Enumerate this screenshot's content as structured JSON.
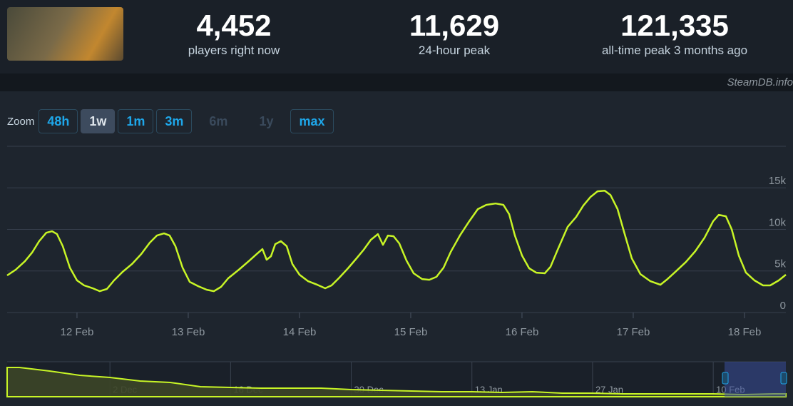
{
  "stats": [
    {
      "value": "4,452",
      "label": "players right now"
    },
    {
      "value": "11,629",
      "label": "24-hour peak"
    },
    {
      "value": "121,335",
      "label": "all-time peak 3 months ago"
    }
  ],
  "watermark": "SteamDB.info",
  "zoom": {
    "label": "Zoom",
    "options": [
      "48h",
      "1w",
      "1m",
      "3m",
      "6m",
      "1y",
      "max"
    ],
    "active": "1w",
    "disabled": [
      "6m",
      "1y"
    ]
  },
  "chart_data": [
    {
      "type": "line",
      "color": "#c8f526",
      "grid": true,
      "x": [
        11.372,
        11.449,
        11.532,
        11.596,
        11.66,
        11.724,
        11.776,
        11.821,
        11.872,
        11.936,
        12.0,
        12.064,
        12.141,
        12.205,
        12.269,
        12.333,
        12.41,
        12.494,
        12.577,
        12.654,
        12.718,
        12.782,
        12.833,
        12.885,
        12.949,
        13.013,
        13.09,
        13.167,
        13.231,
        13.295,
        13.359,
        13.455,
        13.551,
        13.615,
        13.667,
        13.705,
        13.744,
        13.782,
        13.833,
        13.885,
        13.936,
        14.0,
        14.077,
        14.16,
        14.231,
        14.288,
        14.353,
        14.436,
        14.513,
        14.577,
        14.641,
        14.705,
        14.75,
        14.795,
        14.846,
        14.897,
        14.962,
        15.026,
        15.103,
        15.167,
        15.231,
        15.295,
        15.359,
        15.442,
        15.526,
        15.603,
        15.679,
        15.763,
        15.833,
        15.885,
        15.936,
        16.0,
        16.064,
        16.128,
        16.205,
        16.256,
        16.321,
        16.41,
        16.487,
        16.551,
        16.615,
        16.679,
        16.744,
        16.795,
        16.859,
        16.923,
        16.987,
        17.064,
        17.154,
        17.244,
        17.308,
        17.385,
        17.474,
        17.558,
        17.641,
        17.718,
        17.769,
        17.833,
        17.885,
        17.949,
        18.013,
        18.09,
        18.167,
        18.231,
        18.308,
        18.372
      ],
      "values": [
        4460,
        5150,
        6170,
        7200,
        8580,
        9600,
        9780,
        9430,
        7980,
        5400,
        3860,
        3260,
        2920,
        2570,
        2830,
        3860,
        4890,
        5830,
        7030,
        8400,
        9260,
        9520,
        9260,
        7980,
        5400,
        3690,
        3170,
        2740,
        2570,
        3090,
        4120,
        5150,
        6260,
        7030,
        7630,
        6350,
        6770,
        8230,
        8580,
        7980,
        5830,
        4550,
        3770,
        3340,
        2920,
        3260,
        4120,
        5320,
        6520,
        7550,
        8750,
        9430,
        8150,
        9260,
        9180,
        8320,
        6260,
        4720,
        4030,
        3940,
        4290,
        5400,
        7290,
        9260,
        10980,
        12440,
        12950,
        13120,
        12950,
        11830,
        9260,
        6860,
        5320,
        4800,
        4720,
        5490,
        7550,
        10290,
        11490,
        12860,
        13890,
        14580,
        14660,
        14150,
        12440,
        9430,
        6520,
        4630,
        3770,
        3340,
        4030,
        4970,
        6090,
        7380,
        9000,
        10980,
        11750,
        11580,
        10030,
        6860,
        4800,
        3860,
        3260,
        3260,
        3860,
        4550
      ],
      "xlim": [
        11.372,
        18.372
      ],
      "xticks": [
        {
          "value": 12,
          "label": "12 Feb"
        },
        {
          "value": 13,
          "label": "13 Feb"
        },
        {
          "value": 14,
          "label": "14 Feb"
        },
        {
          "value": 15,
          "label": "15 Feb"
        },
        {
          "value": 16,
          "label": "16 Feb"
        },
        {
          "value": 17,
          "label": "17 Feb"
        },
        {
          "value": 18,
          "label": "18 Feb"
        }
      ],
      "ylim": [
        0,
        20000
      ],
      "yticks": [
        0,
        {
          "value": 5000,
          "label": "5k"
        },
        {
          "value": 10000,
          "label": "10k"
        },
        {
          "value": 15000,
          "label": "15k"
        }
      ]
    },
    {
      "type": "area",
      "color": "#c8f526",
      "categories": [
        null,
        null,
        null,
        "2 Dec",
        null,
        null,
        null,
        "16 Dec",
        null,
        null,
        null,
        "30 Dec",
        null,
        null,
        null,
        "13 Jan",
        null,
        null,
        null,
        "27 Jan",
        null,
        null,
        null,
        "10 Feb",
        null,
        null
      ],
      "values": [
        104600,
        91800,
        76500,
        68900,
        56100,
        51000,
        35700,
        33200,
        30600,
        30600,
        30600,
        25500,
        23000,
        20400,
        17900,
        17900,
        15300,
        17900,
        12800,
        12800,
        10200,
        10200,
        10200,
        10200,
        7700,
        10200
      ],
      "ylim": [
        0,
        125000
      ]
    }
  ]
}
